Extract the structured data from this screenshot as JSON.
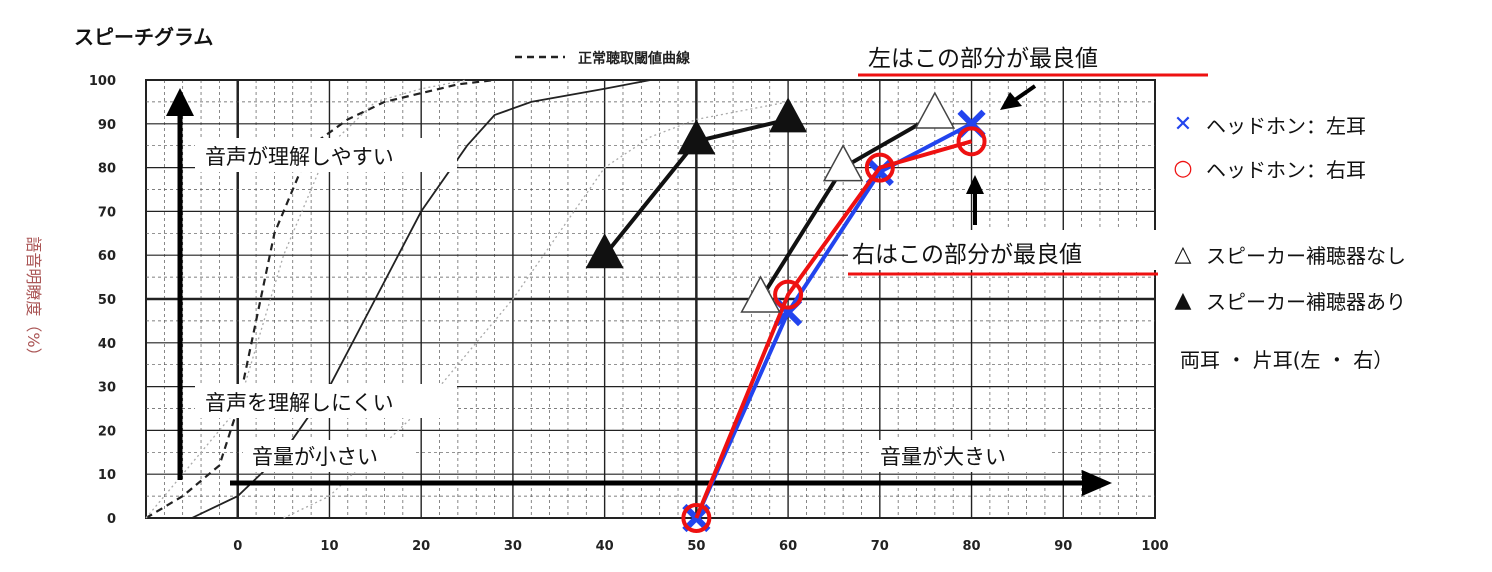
{
  "chart_data": {
    "type": "line",
    "title": "スピーチグラム",
    "ylabel": "語音明瞭度（%）",
    "xlabel": "",
    "xlim": [
      -10,
      100
    ],
    "ylim": [
      0,
      100
    ],
    "x_ticks": [
      0,
      10,
      20,
      30,
      40,
      50,
      60,
      70,
      80,
      90,
      100
    ],
    "y_ticks": [
      0,
      10,
      20,
      30,
      40,
      50,
      60,
      70,
      80,
      90,
      100
    ],
    "grid": true,
    "series": [
      {
        "name": "正常聴取閾値曲線",
        "style": "dashed",
        "color": "#222222",
        "x": [
          -10,
          -6,
          -2,
          0,
          2,
          4,
          6,
          8,
          12,
          16,
          20,
          24,
          28
        ],
        "y": [
          0,
          5,
          12,
          25,
          45,
          65,
          75,
          85,
          91,
          95,
          97,
          99,
          100
        ]
      },
      {
        "name": "",
        "style": "solid",
        "color": "#222222",
        "x": [
          -5,
          0,
          5,
          10,
          15,
          20,
          25,
          28,
          32,
          40,
          45
        ],
        "y": [
          0,
          5,
          15,
          30,
          50,
          70,
          85,
          92,
          95,
          98,
          100
        ]
      },
      {
        "name": "",
        "style": "dotted",
        "color": "#aaaaaa",
        "x": [
          -10,
          0,
          5,
          10,
          15,
          20,
          25
        ],
        "y": [
          0,
          25,
          60,
          85,
          95,
          98,
          100
        ]
      },
      {
        "name": "",
        "style": "dotted",
        "color": "#aaaaaa",
        "x": [
          5,
          10,
          20,
          30,
          35,
          40,
          45,
          50,
          55,
          60
        ],
        "y": [
          0,
          5,
          25,
          50,
          65,
          80,
          87,
          91,
          93,
          95
        ]
      },
      {
        "name": "ヘッドホン：左耳",
        "style": "solid",
        "color": "#2244ee",
        "marker": "x",
        "x": [
          50,
          60,
          70,
          80
        ],
        "y": [
          0,
          47,
          79,
          90
        ]
      },
      {
        "name": "ヘッドホン：右耳",
        "style": "solid",
        "color": "#ee1111",
        "marker": "o",
        "x": [
          50,
          60,
          70,
          80
        ],
        "y": [
          0,
          51,
          80,
          86
        ]
      },
      {
        "name": "スピーカー補聴器なし",
        "style": "solid",
        "color": "#111111",
        "marker": "open-triangle",
        "x": [
          57,
          66,
          76
        ],
        "y": [
          50,
          80,
          92
        ]
      },
      {
        "name": "スピーカー補聴器あり",
        "style": "solid",
        "color": "#111111",
        "marker": "filled-triangle",
        "x": [
          40,
          50,
          60
        ],
        "y": [
          60,
          86,
          91
        ]
      }
    ],
    "annotations": {
      "top_left_arrow_text": "音声が理解しやすい",
      "bottom_left_arrow_text": "音声を理解しにくい",
      "quiet_text": "音量が小さい",
      "loud_text": "音量が大きい",
      "left_best": "左はこの部分が最良値",
      "right_best": "右はこの部分が最良値"
    },
    "legend_extra": "両耳 ・ 片耳(左 ・ 右）"
  }
}
